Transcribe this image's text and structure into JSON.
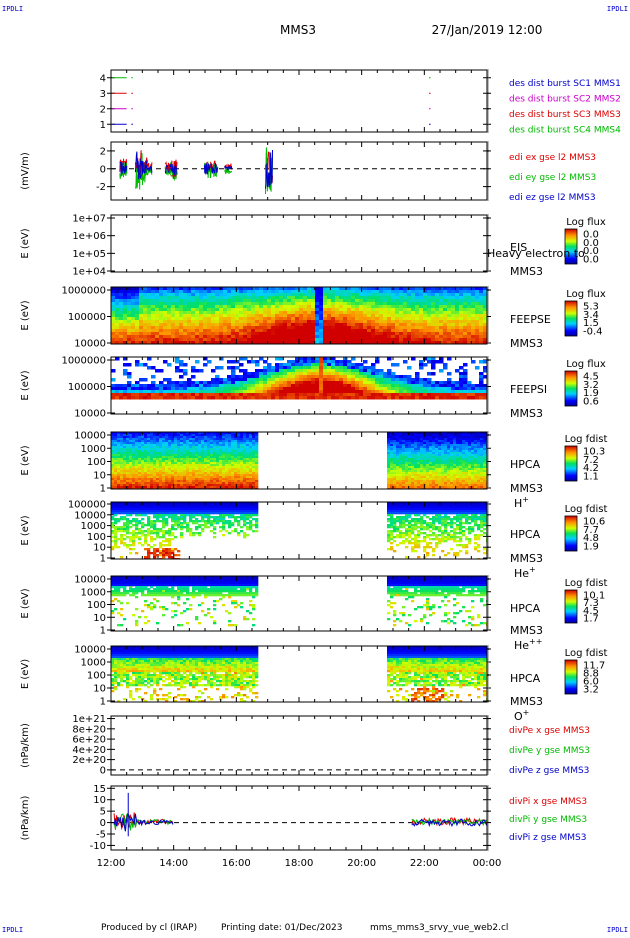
{
  "header": {
    "corner_left_top": "IPDLI",
    "corner_right_top": "IPDLI",
    "corner_left_bottom": "IPDLI",
    "corner_right_bottom": "IPDLI",
    "spacecraft": "MMS3",
    "datetime": "27/Jan/2019 12:00"
  },
  "footer": {
    "produced_by": "Produced by cl (IRAP)",
    "printing_date": "Printing date: 01/Dec/2023",
    "file_name": "mms_mms3_srvy_vue_web2.cl"
  },
  "time_axis": {
    "ticks": [
      "12:00",
      "14:00",
      "16:00",
      "18:00",
      "20:00",
      "22:00",
      "00:00"
    ],
    "hours": [
      12,
      14,
      16,
      18,
      20,
      22,
      24
    ],
    "range_hours": [
      12,
      24
    ]
  },
  "colors": {
    "black": "#000000",
    "red": "#dd0000",
    "green": "#00bb00",
    "blue": "#0000cc",
    "magenta": "#cc00cc"
  },
  "chart_data": [
    {
      "type": "line",
      "id": "burst",
      "ylabel": "",
      "ylim": [
        0.5,
        4.5
      ],
      "yticks": [
        "1",
        "2",
        "3",
        "4"
      ],
      "legend": [
        "des dist burst SC1 MMS1",
        "des dist burst SC2 MMS2",
        "des dist burst SC3 MMS3",
        "des dist burst SC4 MMS4"
      ],
      "legend_colors": [
        "#0000cc",
        "#cc00cc",
        "#dd0000",
        "#00bb00"
      ],
      "series": [
        {
          "level": 4,
          "color": "#00bb00",
          "segments": [
            [
              12.05,
              12.5
            ],
            [
              12.65,
              12.7
            ],
            [
              22.15,
              22.2
            ]
          ]
        },
        {
          "level": 3,
          "color": "#dd0000",
          "segments": [
            [
              12.05,
              12.5
            ],
            [
              12.65,
              12.7
            ],
            [
              22.15,
              22.2
            ]
          ]
        },
        {
          "level": 2,
          "color": "#cc00cc",
          "segments": [
            [
              12.05,
              12.5
            ],
            [
              12.65,
              12.7
            ],
            [
              22.15,
              22.2
            ]
          ]
        },
        {
          "level": 1,
          "color": "#0000cc",
          "segments": [
            [
              12.05,
              12.5
            ],
            [
              12.65,
              12.7
            ],
            [
              22.15,
              22.2
            ]
          ]
        }
      ]
    },
    {
      "type": "line",
      "id": "edi",
      "ylabel": "(mV/m)",
      "ylim": [
        -3.5,
        3
      ],
      "yticks": [
        "-2",
        "0",
        "2"
      ],
      "ytick_values": [
        -2,
        0,
        2
      ],
      "legend": [
        "edi ex gse l2 MMS3",
        "edi ey gse l2 MMS3",
        "edi ez gse l2 MMS3"
      ],
      "legend_colors": [
        "#dd0000",
        "#00bb00",
        "#0000cc"
      ],
      "zero_line": true,
      "bursts": [
        {
          "t": 12.4,
          "amp": 1.0
        },
        {
          "t": 12.9,
          "amp": 2.5
        },
        {
          "t": 13.05,
          "amp": 1.4
        },
        {
          "t": 13.2,
          "amp": 0.6
        },
        {
          "t": 13.85,
          "amp": 0.6
        },
        {
          "t": 14.0,
          "amp": 1.0
        },
        {
          "t": 15.1,
          "amp": 0.9
        },
        {
          "t": 15.3,
          "amp": 0.8
        },
        {
          "t": 15.75,
          "amp": 0.4
        },
        {
          "t": 17.05,
          "amp": 2.8
        }
      ]
    },
    {
      "type": "heatmap",
      "id": "eis",
      "ylabel": "E (eV)",
      "yticks": [
        "1e+04",
        "1e+05",
        "1e+06",
        "1e+07"
      ],
      "instrument": "EIS",
      "spacecraft": "MMS3",
      "legend_title": "Log flux",
      "cbar_ticks": [
        "0.0",
        "0.0",
        "0.0",
        "0.0"
      ],
      "overflow_text": "Heavy electron to",
      "empty": true
    },
    {
      "type": "heatmap",
      "id": "feepse",
      "ylabel": "E (eV)",
      "yticks": [
        "10000",
        "100000",
        "1000000"
      ],
      "instrument": "FEEPSE",
      "spacecraft": "MMS3",
      "legend_title": "Log flux",
      "cbar_ticks": [
        "5.3",
        "3.4",
        "1.5",
        "-0.4"
      ],
      "cbar_range": [
        -0.4,
        5.3
      ]
    },
    {
      "type": "heatmap",
      "id": "feepsi",
      "ylabel": "E (eV)",
      "yticks": [
        "10000",
        "100000",
        "1000000"
      ],
      "instrument": "FEEPSI",
      "spacecraft": "MMS3",
      "legend_title": "Log flux",
      "cbar_ticks": [
        "4.5",
        "3.2",
        "1.9",
        "0.6"
      ],
      "cbar_range": [
        0.6,
        4.5
      ]
    },
    {
      "type": "heatmap",
      "id": "hpca_h",
      "ylabel": "E (eV)",
      "yticks": [
        "1",
        "10",
        "100",
        "1000",
        "10000"
      ],
      "instrument": "HPCA",
      "spacecraft": "MMS3",
      "species": "H",
      "species_sup": "+",
      "legend_title": "Log fdist",
      "cbar_ticks": [
        "10.3",
        "7.2",
        "4.2",
        "1.1"
      ],
      "cbar_range": [
        1.1,
        10.3
      ],
      "coverage": [
        [
          12,
          16.6
        ],
        [
          20.8,
          24
        ]
      ]
    },
    {
      "type": "heatmap",
      "id": "hpca_he",
      "ylabel": "E (eV)",
      "yticks": [
        "1",
        "10",
        "100",
        "1000",
        "10000",
        "100000"
      ],
      "instrument": "HPCA",
      "spacecraft": "MMS3",
      "species": "He",
      "species_sup": "+",
      "legend_title": "Log fdist",
      "cbar_ticks": [
        "10.6",
        "7.7",
        "4.8",
        "1.9"
      ],
      "cbar_range": [
        1.9,
        10.6
      ],
      "coverage": [
        [
          12,
          16.6
        ],
        [
          20.8,
          24
        ]
      ]
    },
    {
      "type": "heatmap",
      "id": "hpca_hepp",
      "ylabel": "E (eV)",
      "yticks": [
        "1",
        "10",
        "100",
        "1000",
        "10000"
      ],
      "instrument": "HPCA",
      "spacecraft": "MMS3",
      "species": "He",
      "species_sup": "++",
      "legend_title": "Log fdist",
      "cbar_ticks": [
        "10.1",
        "7.3",
        "4.5",
        "1.7"
      ],
      "cbar_range": [
        1.7,
        10.1
      ],
      "coverage": [
        [
          12,
          16.6
        ],
        [
          20.8,
          24
        ]
      ]
    },
    {
      "type": "heatmap",
      "id": "hpca_o",
      "ylabel": "E (eV)",
      "yticks": [
        "1",
        "10",
        "100",
        "1000",
        "10000"
      ],
      "instrument": "HPCA",
      "spacecraft": "MMS3",
      "species": "O",
      "species_sup": "+",
      "legend_title": "Log fdist",
      "cbar_ticks": [
        "11.7",
        "8.8",
        "6.0",
        "3.2"
      ],
      "cbar_range": [
        3.2,
        11.7
      ],
      "coverage": [
        [
          12,
          16.6
        ],
        [
          20.8,
          24
        ]
      ]
    },
    {
      "type": "line",
      "id": "divpe",
      "ylabel": "(nPa/km)",
      "ylim": [
        -1e+20,
        1.05e+21
      ],
      "yticks": [
        "0",
        "2e+20",
        "4e+20",
        "6e+20",
        "8e+20",
        "1e+21"
      ],
      "ytick_values": [
        0,
        2e+20,
        4e+20,
        6e+20,
        8e+20,
        1e+21
      ],
      "legend": [
        "divPe x gse MMS3",
        "divPe y gse MMS3",
        "divPe z gse MMS3"
      ],
      "legend_colors": [
        "#dd0000",
        "#00bb00",
        "#0000cc"
      ],
      "zero_line": true
    },
    {
      "type": "line",
      "id": "divpi",
      "ylabel": "(nPa/km)",
      "ylim": [
        -12,
        16
      ],
      "yticks": [
        "-10",
        "-5",
        "0",
        "5",
        "10",
        "15"
      ],
      "ytick_values": [
        -10,
        -5,
        0,
        5,
        10,
        15
      ],
      "legend": [
        "divPi x gse MMS3",
        "divPi y gse MMS3",
        "divPi z gse MMS3"
      ],
      "legend_colors": [
        "#dd0000",
        "#00bb00",
        "#0000cc"
      ],
      "zero_line": true,
      "active_ranges": [
        [
          12.1,
          14.0
        ],
        [
          21.6,
          24
        ]
      ],
      "spike": {
        "t": 12.55,
        "value": 13
      }
    }
  ]
}
